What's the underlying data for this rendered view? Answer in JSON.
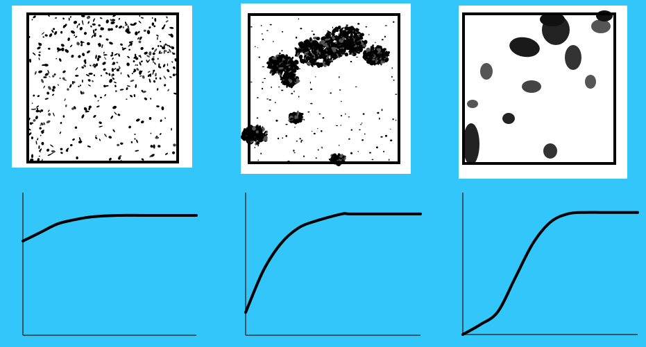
{
  "colors": {
    "background": "#33c6fb",
    "panel": "#ffffff",
    "ink": "#000000",
    "gray_ink": "#555555"
  },
  "textures": [
    {
      "style": "fine-grained"
    },
    {
      "style": "medium-grained"
    },
    {
      "style": "coarse-grained"
    }
  ],
  "chart_data": [
    {
      "type": "line",
      "title": "",
      "xlabel": "",
      "ylabel": "",
      "xlim": [
        0,
        1
      ],
      "ylim": [
        0,
        1
      ],
      "grid": false,
      "series": [
        {
          "x": [
            0,
            0.1,
            0.2,
            0.3,
            0.4,
            0.55,
            0.7,
            0.85,
            1.0
          ],
          "values": [
            0.66,
            0.72,
            0.78,
            0.81,
            0.83,
            0.84,
            0.84,
            0.84,
            0.84
          ]
        }
      ]
    },
    {
      "type": "line",
      "title": "",
      "xlabel": "",
      "ylabel": "",
      "xlim": [
        0,
        1
      ],
      "ylim": [
        0,
        1
      ],
      "grid": false,
      "series": [
        {
          "x": [
            0,
            0.1,
            0.2,
            0.3,
            0.4,
            0.55,
            0.6,
            0.8,
            1.0
          ],
          "values": [
            0.16,
            0.45,
            0.64,
            0.75,
            0.8,
            0.85,
            0.85,
            0.85,
            0.85
          ]
        }
      ]
    },
    {
      "type": "line",
      "title": "",
      "xlabel": "",
      "ylabel": "",
      "xlim": [
        0,
        1
      ],
      "ylim": [
        0,
        1
      ],
      "grid": false,
      "series": [
        {
          "x": [
            0,
            0.1,
            0.2,
            0.3,
            0.4,
            0.5,
            0.6,
            0.7,
            0.8,
            1.0
          ],
          "values": [
            0.0,
            0.07,
            0.16,
            0.4,
            0.64,
            0.79,
            0.85,
            0.86,
            0.86,
            0.86
          ]
        }
      ]
    }
  ]
}
